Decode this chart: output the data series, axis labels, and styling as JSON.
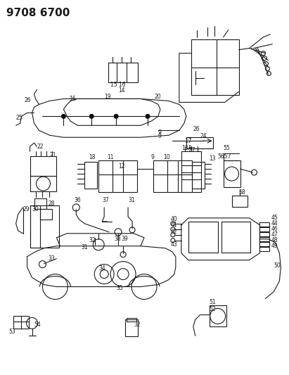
{
  "title": "9708 6700",
  "bg_color": "#ffffff",
  "line_color": "#1a1a1a",
  "fig_width": 4.11,
  "fig_height": 5.33,
  "dpi": 100
}
